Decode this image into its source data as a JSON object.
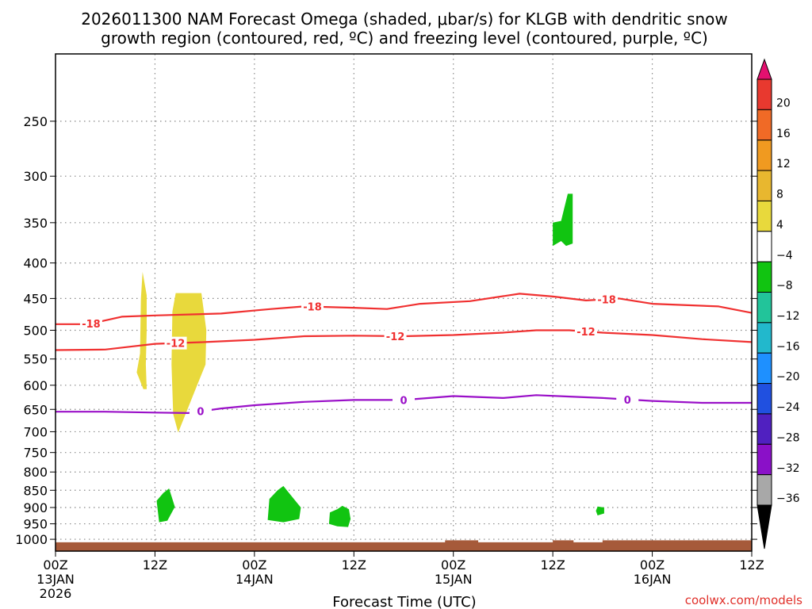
{
  "chart_data": {
    "type": "heatmap",
    "title_lines": [
      "2026011300 NAM Forecast Omega (shaded, μbar/s) for KLGB with dendritic snow",
      "growth region (contoured, red, ºC) and freezing level (contoured, purple, ºC)"
    ],
    "xlabel": "Forecast Time (UTC)",
    "credit": "coolwx.com/models",
    "x_hours_range": [
      0,
      84
    ],
    "y_pressure_range": [
      200,
      1040
    ],
    "y_scale": "log-pressure",
    "grid": true,
    "x_ticks": [
      {
        "hour": 0,
        "lines": [
          "00Z",
          "13JAN",
          "2026"
        ]
      },
      {
        "hour": 12,
        "lines": [
          "12Z"
        ]
      },
      {
        "hour": 24,
        "lines": [
          "00Z",
          "14JAN"
        ]
      },
      {
        "hour": 36,
        "lines": [
          "12Z"
        ]
      },
      {
        "hour": 48,
        "lines": [
          "00Z",
          "15JAN"
        ]
      },
      {
        "hour": 60,
        "lines": [
          "12Z"
        ]
      },
      {
        "hour": 72,
        "lines": [
          "00Z",
          "16JAN"
        ]
      },
      {
        "hour": 84,
        "lines": [
          "12Z"
        ]
      }
    ],
    "y_ticks": [
      250,
      300,
      350,
      400,
      450,
      500,
      550,
      600,
      650,
      700,
      750,
      800,
      850,
      900,
      950,
      1000
    ],
    "colorbar": {
      "labels": [
        "20",
        "16",
        "12",
        "8",
        "4",
        "−4",
        "−8",
        "−12",
        "−16",
        "−20",
        "−24",
        "−28",
        "−32",
        "−36"
      ],
      "colors": [
        "#e3106f",
        "#e8392f",
        "#f06a26",
        "#f09a20",
        "#e8b72f",
        "#e8d93c",
        "#ffffff",
        "#11c411",
        "#22c49a",
        "#22b8cc",
        "#1e90ff",
        "#2050e0",
        "#5020c0",
        "#8a10c8",
        "#a8a8a8",
        "#000000"
      ]
    },
    "contours": [
      {
        "name": "-18",
        "color": "#f03030",
        "label_at_hours": [
          4.3,
          31,
          66.5
        ],
        "points": [
          [
            0,
            490
          ],
          [
            4,
            490
          ],
          [
            6,
            484
          ],
          [
            8,
            478
          ],
          [
            12,
            476
          ],
          [
            20,
            473
          ],
          [
            26,
            466
          ],
          [
            30,
            462
          ],
          [
            36,
            464
          ],
          [
            40,
            466
          ],
          [
            44,
            458
          ],
          [
            50,
            454
          ],
          [
            56,
            443
          ],
          [
            60,
            447
          ],
          [
            64,
            453
          ],
          [
            68,
            450
          ],
          [
            72,
            458
          ],
          [
            80,
            462
          ],
          [
            84,
            472
          ]
        ]
      },
      {
        "name": "-12",
        "color": "#f03030",
        "label_at_hours": [
          14.5,
          41,
          64
        ],
        "points": [
          [
            0,
            534
          ],
          [
            6,
            533
          ],
          [
            9,
            528
          ],
          [
            12,
            523
          ],
          [
            18,
            520
          ],
          [
            24,
            516
          ],
          [
            30,
            510
          ],
          [
            36,
            509
          ],
          [
            42,
            510
          ],
          [
            48,
            508
          ],
          [
            54,
            504
          ],
          [
            58,
            500
          ],
          [
            62,
            500
          ],
          [
            66,
            504
          ],
          [
            72,
            508
          ],
          [
            78,
            515
          ],
          [
            84,
            520
          ]
        ]
      },
      {
        "name": "0",
        "color": "#9a10c8",
        "label_at_hours": [
          17.5,
          42,
          69
        ],
        "points": [
          [
            0,
            655
          ],
          [
            6,
            655
          ],
          [
            12,
            657
          ],
          [
            16,
            658
          ],
          [
            20,
            648
          ],
          [
            24,
            641
          ],
          [
            30,
            634
          ],
          [
            36,
            630
          ],
          [
            42,
            630
          ],
          [
            48,
            622
          ],
          [
            54,
            626
          ],
          [
            58,
            620
          ],
          [
            62,
            623
          ],
          [
            66,
            626
          ],
          [
            72,
            632
          ],
          [
            78,
            636
          ],
          [
            84,
            636
          ]
        ]
      }
    ],
    "shaded_regions": [
      {
        "color": "#e8d93c",
        "omega_range": [
          4,
          8
        ],
        "points": [
          [
            10.5,
            412
          ],
          [
            11.0,
            445
          ],
          [
            11.0,
            500
          ],
          [
            10.9,
            560
          ],
          [
            11.0,
            608
          ],
          [
            10.6,
            608
          ],
          [
            9.8,
            575
          ],
          [
            10.2,
            540
          ],
          [
            10.3,
            450
          ]
        ]
      },
      {
        "color": "#e8d93c",
        "omega_range": [
          4,
          8
        ],
        "points": [
          [
            14.5,
            442
          ],
          [
            17.6,
            442
          ],
          [
            18.2,
            500
          ],
          [
            18.1,
            560
          ],
          [
            16.8,
            612
          ],
          [
            14.8,
            702
          ],
          [
            14.2,
            660
          ],
          [
            14.0,
            560
          ],
          [
            14.1,
            470
          ]
        ]
      },
      {
        "color": "#11c411",
        "omega_range": [
          -8,
          -4
        ],
        "points": [
          [
            13.7,
            845
          ],
          [
            14.1,
            875
          ],
          [
            14.4,
            898
          ],
          [
            13.5,
            940
          ],
          [
            12.5,
            945
          ],
          [
            12.2,
            880
          ],
          [
            13.0,
            858
          ]
        ]
      },
      {
        "color": "#11c411",
        "omega_range": [
          -8,
          -4
        ],
        "points": [
          [
            27.5,
            838
          ],
          [
            28.6,
            870
          ],
          [
            29.6,
            900
          ],
          [
            29.4,
            935
          ],
          [
            27.5,
            945
          ],
          [
            25.6,
            938
          ],
          [
            25.8,
            875
          ],
          [
            26.8,
            850
          ]
        ]
      },
      {
        "color": "#11c411",
        "omega_range": [
          -8,
          -4
        ],
        "points": [
          [
            34.6,
            895
          ],
          [
            35.4,
            905
          ],
          [
            35.6,
            935
          ],
          [
            35.3,
            960
          ],
          [
            34.0,
            958
          ],
          [
            33.0,
            950
          ],
          [
            33.1,
            915
          ],
          [
            34.0,
            905
          ]
        ]
      },
      {
        "color": "#11c411",
        "omega_range": [
          -8,
          -4
        ],
        "points": [
          [
            61.8,
            318
          ],
          [
            62.4,
            318
          ],
          [
            62.4,
            375
          ],
          [
            61.6,
            378
          ],
          [
            61.0,
            372
          ],
          [
            60.0,
            378
          ],
          [
            60.0,
            350
          ],
          [
            61.0,
            348
          ]
        ]
      },
      {
        "color": "#11c411",
        "omega_range": [
          -8,
          -4
        ],
        "points": [
          [
            65.4,
            897
          ],
          [
            66.2,
            900
          ],
          [
            66.2,
            918
          ],
          [
            65.4,
            924
          ],
          [
            65.2,
            910
          ]
        ]
      }
    ],
    "terrain": {
      "color": "#a65a3a",
      "top_pressure": 1010,
      "bumps_hours": [
        [
          47,
          51
        ],
        [
          60,
          62.5
        ],
        [
          66,
          84
        ]
      ]
    }
  }
}
